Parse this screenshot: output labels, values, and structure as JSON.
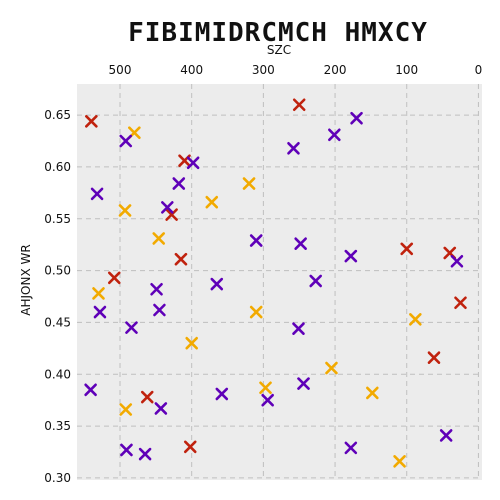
{
  "chart_data": {
    "type": "scatter",
    "title": "FIBIMIDRCMCH HMXCY",
    "xlabel": "SZC",
    "ylabel": "AHJONX WR",
    "x_axis_position": "top",
    "x_inverted": true,
    "xlim": [
      560,
      -5
    ],
    "ylim": [
      0.298,
      0.68
    ],
    "xticks": [
      500,
      400,
      300,
      200,
      100,
      0
    ],
    "yticks": [
      0.3,
      0.35,
      0.4,
      0.45,
      0.5,
      0.55,
      0.6,
      0.65
    ],
    "ytick_labels": [
      "0.30",
      "0.35",
      "0.40",
      "0.45",
      "0.50",
      "0.55",
      "0.60",
      "0.65"
    ],
    "grid": true,
    "marker": "x",
    "colors": [
      "#c0220e",
      "#f2aa00",
      "#5f00b8"
    ],
    "series": [
      {
        "color": "#c0220e",
        "points": [
          [
            540,
            0.644
          ],
          [
            410,
            0.606
          ],
          [
            428,
            0.554
          ],
          [
            250,
            0.66
          ],
          [
            508,
            0.493
          ],
          [
            415,
            0.511
          ],
          [
            462,
            0.378
          ],
          [
            402,
            0.33
          ],
          [
            100,
            0.521
          ],
          [
            40,
            0.517
          ],
          [
            25,
            0.469
          ],
          [
            62,
            0.416
          ]
        ]
      },
      {
        "color": "#f2aa00",
        "points": [
          [
            480,
            0.633
          ],
          [
            320,
            0.584
          ],
          [
            493,
            0.558
          ],
          [
            372,
            0.566
          ],
          [
            446,
            0.531
          ],
          [
            530,
            0.478
          ],
          [
            400,
            0.43
          ],
          [
            310,
            0.46
          ],
          [
            88,
            0.453
          ],
          [
            297,
            0.387
          ],
          [
            205,
            0.406
          ],
          [
            148,
            0.382
          ],
          [
            492,
            0.366
          ],
          [
            110,
            0.316
          ]
        ]
      },
      {
        "color": "#5f00b8",
        "points": [
          [
            532,
            0.574
          ],
          [
            492,
            0.625
          ],
          [
            398,
            0.604
          ],
          [
            418,
            0.584
          ],
          [
            434,
            0.561
          ],
          [
            201,
            0.631
          ],
          [
            170,
            0.647
          ],
          [
            258,
            0.618
          ],
          [
            310,
            0.529
          ],
          [
            248,
            0.526
          ],
          [
            178,
            0.514
          ],
          [
            30,
            0.509
          ],
          [
            227,
            0.49
          ],
          [
            365,
            0.487
          ],
          [
            449,
            0.482
          ],
          [
            445,
            0.462
          ],
          [
            528,
            0.46
          ],
          [
            484,
            0.445
          ],
          [
            251,
            0.444
          ],
          [
            541,
            0.385
          ],
          [
            358,
            0.381
          ],
          [
            294,
            0.375
          ],
          [
            244,
            0.391
          ],
          [
            443,
            0.367
          ],
          [
            491,
            0.327
          ],
          [
            465,
            0.323
          ],
          [
            178,
            0.329
          ],
          [
            45,
            0.341
          ]
        ]
      }
    ]
  }
}
